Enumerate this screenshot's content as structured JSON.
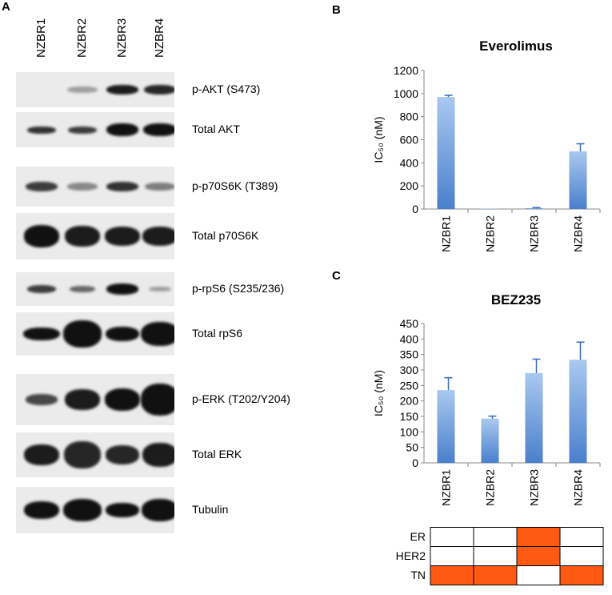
{
  "panels": {
    "a": "A",
    "b": "B",
    "c": "C"
  },
  "lanes": [
    "NZBR1",
    "NZBR2",
    "NZBR3",
    "NZBR4"
  ],
  "blots": [
    {
      "label": "p-AKT (S473)",
      "top": 90,
      "h": 44,
      "bands": [
        {
          "i": 0,
          "w": 0,
          "h": 0,
          "o": 0
        },
        {
          "i": 1,
          "w": 38,
          "h": 8,
          "o": 0.35
        },
        {
          "i": 2,
          "w": 40,
          "h": 12,
          "o": 0.95
        },
        {
          "i": 3,
          "w": 40,
          "h": 12,
          "o": 0.9
        }
      ]
    },
    {
      "label": "Total AKT",
      "top": 140,
      "h": 44,
      "bands": [
        {
          "i": 0,
          "w": 36,
          "h": 9,
          "o": 0.85
        },
        {
          "i": 1,
          "w": 36,
          "h": 9,
          "o": 0.8
        },
        {
          "i": 2,
          "w": 40,
          "h": 16,
          "o": 1
        },
        {
          "i": 3,
          "w": 42,
          "h": 16,
          "o": 1
        }
      ]
    },
    {
      "label": "p-p70S6K (T389)",
      "top": 208,
      "h": 50,
      "bands": [
        {
          "i": 0,
          "w": 40,
          "h": 12,
          "o": 0.8
        },
        {
          "i": 1,
          "w": 38,
          "h": 10,
          "o": 0.45
        },
        {
          "i": 2,
          "w": 40,
          "h": 12,
          "o": 0.85
        },
        {
          "i": 3,
          "w": 38,
          "h": 10,
          "o": 0.5
        }
      ]
    },
    {
      "label": "Total p70S6K",
      "top": 266,
      "h": 58,
      "bands": [
        {
          "i": 0,
          "w": 44,
          "h": 28,
          "o": 1
        },
        {
          "i": 1,
          "w": 44,
          "h": 26,
          "o": 0.95
        },
        {
          "i": 2,
          "w": 44,
          "h": 24,
          "o": 0.95
        },
        {
          "i": 3,
          "w": 44,
          "h": 24,
          "o": 0.95
        }
      ]
    },
    {
      "label": "p-rpS6 (S235/236)",
      "top": 340,
      "h": 42,
      "bands": [
        {
          "i": 0,
          "w": 36,
          "h": 10,
          "o": 0.8
        },
        {
          "i": 1,
          "w": 32,
          "h": 8,
          "o": 0.6
        },
        {
          "i": 2,
          "w": 40,
          "h": 14,
          "o": 1
        },
        {
          "i": 3,
          "w": 28,
          "h": 6,
          "o": 0.35
        }
      ]
    },
    {
      "label": "Total rpS6",
      "top": 390,
      "h": 54,
      "bands": [
        {
          "i": 0,
          "w": 46,
          "h": 16,
          "o": 1
        },
        {
          "i": 1,
          "w": 48,
          "h": 34,
          "o": 1
        },
        {
          "i": 2,
          "w": 42,
          "h": 18,
          "o": 1
        },
        {
          "i": 3,
          "w": 48,
          "h": 30,
          "o": 1
        }
      ]
    },
    {
      "label": "p-ERK (T202/Y204)",
      "top": 467,
      "h": 64,
      "bands": [
        {
          "i": 0,
          "w": 40,
          "h": 14,
          "o": 0.75
        },
        {
          "i": 1,
          "w": 44,
          "h": 26,
          "o": 0.95
        },
        {
          "i": 2,
          "w": 44,
          "h": 28,
          "o": 1
        },
        {
          "i": 3,
          "w": 48,
          "h": 40,
          "o": 1
        }
      ]
    },
    {
      "label": "Total ERK",
      "top": 540,
      "h": 56,
      "bands": [
        {
          "i": 0,
          "w": 44,
          "h": 26,
          "o": 0.95
        },
        {
          "i": 1,
          "w": 46,
          "h": 34,
          "o": 0.9
        },
        {
          "i": 2,
          "w": 42,
          "h": 24,
          "o": 0.9
        },
        {
          "i": 3,
          "w": 44,
          "h": 30,
          "o": 0.95
        }
      ]
    },
    {
      "label": "Tubulin",
      "top": 608,
      "h": 58,
      "bands": [
        {
          "i": 0,
          "w": 44,
          "h": 22,
          "o": 1
        },
        {
          "i": 1,
          "w": 48,
          "h": 28,
          "o": 1
        },
        {
          "i": 2,
          "w": 42,
          "h": 18,
          "o": 1
        },
        {
          "i": 3,
          "w": 46,
          "h": 28,
          "o": 1
        }
      ]
    }
  ],
  "chart_data": [
    {
      "type": "bar",
      "title": "Everolimus",
      "ylabel": "IC₅₀ (nM)",
      "categories": [
        "NZBR1",
        "NZBR2",
        "NZBR3",
        "NZBR4"
      ],
      "values": [
        970,
        2,
        8,
        500
      ],
      "errors": [
        15,
        0,
        5,
        65
      ],
      "ylim": [
        0,
        1200
      ],
      "yticks": [
        0,
        200,
        400,
        600,
        800,
        1000,
        1200
      ]
    },
    {
      "type": "bar",
      "title": "BEZ235",
      "ylabel": "IC₅₀ (nM)",
      "categories": [
        "NZBR1",
        "NZBR2",
        "NZBR3",
        "NZBR4"
      ],
      "values": [
        235,
        143,
        290,
        333
      ],
      "errors": [
        40,
        8,
        45,
        57
      ],
      "ylim": [
        0,
        450
      ],
      "yticks": [
        0,
        50,
        100,
        150,
        200,
        250,
        300,
        350,
        400,
        450
      ]
    }
  ],
  "receptor_table": {
    "rows": [
      "ER",
      "HER2",
      "TN"
    ],
    "cells": [
      [
        0,
        0,
        1,
        0
      ],
      [
        0,
        0,
        1,
        0
      ],
      [
        1,
        1,
        0,
        1
      ]
    ],
    "fill": "#ff5a14"
  },
  "colors": {
    "bar_top": "#a9c8ef",
    "bar_bottom": "#4a7fcc"
  }
}
